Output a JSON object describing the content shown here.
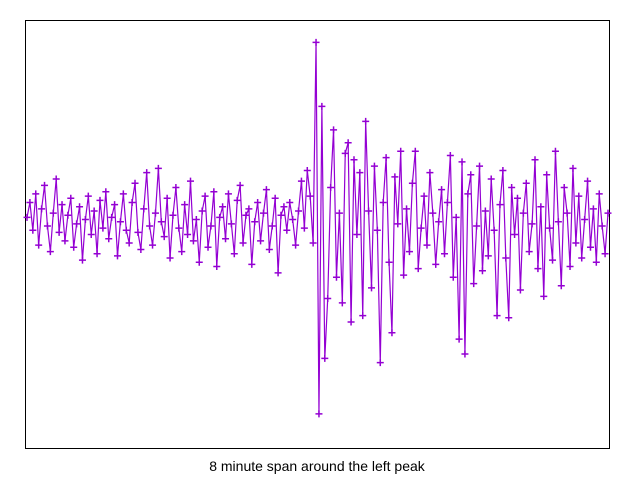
{
  "chart_data": {
    "type": "line",
    "title": "8 minute span around the left peak",
    "color": "#9400d3",
    "ylim": [
      -10,
      10
    ],
    "values": [
      0.8,
      1.5,
      0.2,
      1.9,
      -0.5,
      1.2,
      2.3,
      0.4,
      -0.8,
      1.0,
      2.6,
      0.1,
      1.4,
      -0.3,
      0.9,
      1.7,
      -0.6,
      0.5,
      1.3,
      -1.2,
      0.7,
      1.8,
      0.0,
      1.1,
      -0.9,
      1.6,
      0.3,
      2.0,
      -0.2,
      0.8,
      1.4,
      -1.0,
      0.6,
      1.9,
      0.2,
      -0.4,
      1.5,
      2.4,
      0.1,
      -0.7,
      1.2,
      2.9,
      0.4,
      -0.5,
      1.0,
      3.1,
      0.6,
      -0.1,
      1.7,
      -1.1,
      0.9,
      2.2,
      0.3,
      -0.8,
      1.4,
      0.0,
      2.5,
      -0.3,
      0.7,
      -1.3,
      1.1,
      1.8,
      -0.6,
      0.4,
      2.0,
      -1.5,
      0.8,
      1.3,
      -0.2,
      1.9,
      0.5,
      -0.9,
      1.6,
      2.3,
      -0.4,
      0.9,
      1.2,
      -1.4,
      0.6,
      1.5,
      -0.3,
      1.0,
      2.1,
      -0.7,
      0.4,
      1.7,
      -1.8,
      0.9,
      1.3,
      0.2,
      1.5,
      0.7,
      -0.5,
      1.1,
      2.5,
      0.3,
      3.0,
      1.8,
      -0.4,
      9.0,
      -8.4,
      6.0,
      -5.8,
      -3.0,
      2.2,
      4.9,
      -2.0,
      1.0,
      -3.2,
      3.8,
      4.3,
      -4.1,
      3.5,
      0.0,
      2.9,
      -3.8,
      5.3,
      1.1,
      -2.5,
      3.2,
      0.2,
      -6.0,
      1.5,
      3.6,
      -1.3,
      -4.6,
      2.7,
      0.5,
      3.9,
      -1.9,
      1.2,
      -0.8,
      2.4,
      3.9,
      -1.6,
      0.3,
      1.8,
      -0.5,
      2.9,
      1.0,
      -1.4,
      0.6,
      2.1,
      -0.9,
      1.5,
      3.7,
      -2.0,
      0.8,
      -4.9,
      3.4,
      -5.6,
      1.9,
      2.8,
      -2.3,
      0.4,
      3.2,
      -1.7,
      1.1,
      -1.0,
      2.6,
      0.2,
      -3.8,
      1.4,
      3.0,
      -1.1,
      -3.9,
      2.2,
      0.0,
      1.7,
      -2.6,
      1.0,
      2.4,
      -0.8,
      0.5,
      3.5,
      -1.6,
      1.3,
      -2.9,
      2.8,
      0.3,
      -1.2,
      3.9,
      0.6,
      -2.4,
      2.2,
      1.0,
      -1.5,
      3.1,
      -0.4,
      1.8,
      -1.1,
      0.7,
      2.5,
      -0.6,
      1.2,
      -1.3,
      1.9,
      0.4,
      -0.9,
      1.0
    ]
  }
}
